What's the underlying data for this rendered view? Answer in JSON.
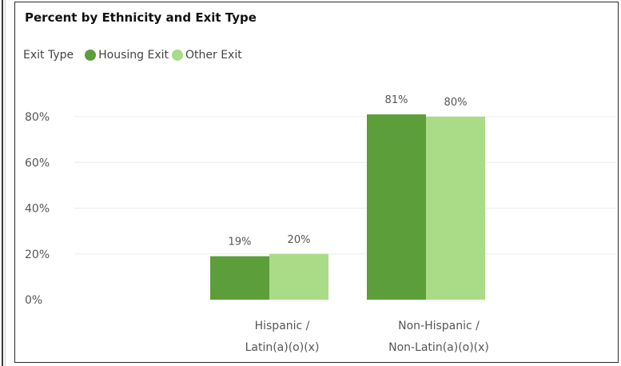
{
  "chart_data": {
    "type": "bar",
    "title": "Percent by Ethnicity and Exit Type",
    "legend_title": "Exit Type",
    "legend_position": "top-left",
    "categories": [
      [
        "Hispanic /",
        "Latin(a)(o)(x)"
      ],
      [
        "Non-Hispanic /",
        "Non-Latin(a)(o)(x)"
      ]
    ],
    "series": [
      {
        "name": "Housing Exit",
        "color": "#5c9e3a",
        "values": [
          19,
          81
        ],
        "labels": [
          "19%",
          "81%"
        ]
      },
      {
        "name": "Other Exit",
        "color": "#aadb86",
        "values": [
          20,
          80
        ],
        "labels": [
          "20%",
          "80%"
        ]
      }
    ],
    "yticks": [
      0,
      20,
      40,
      60,
      80
    ],
    "ytick_labels": [
      "0%",
      "20%",
      "40%",
      "60%",
      "80%"
    ],
    "ylim": [
      0,
      100
    ],
    "grid": true,
    "grid_color": "#ececec"
  }
}
